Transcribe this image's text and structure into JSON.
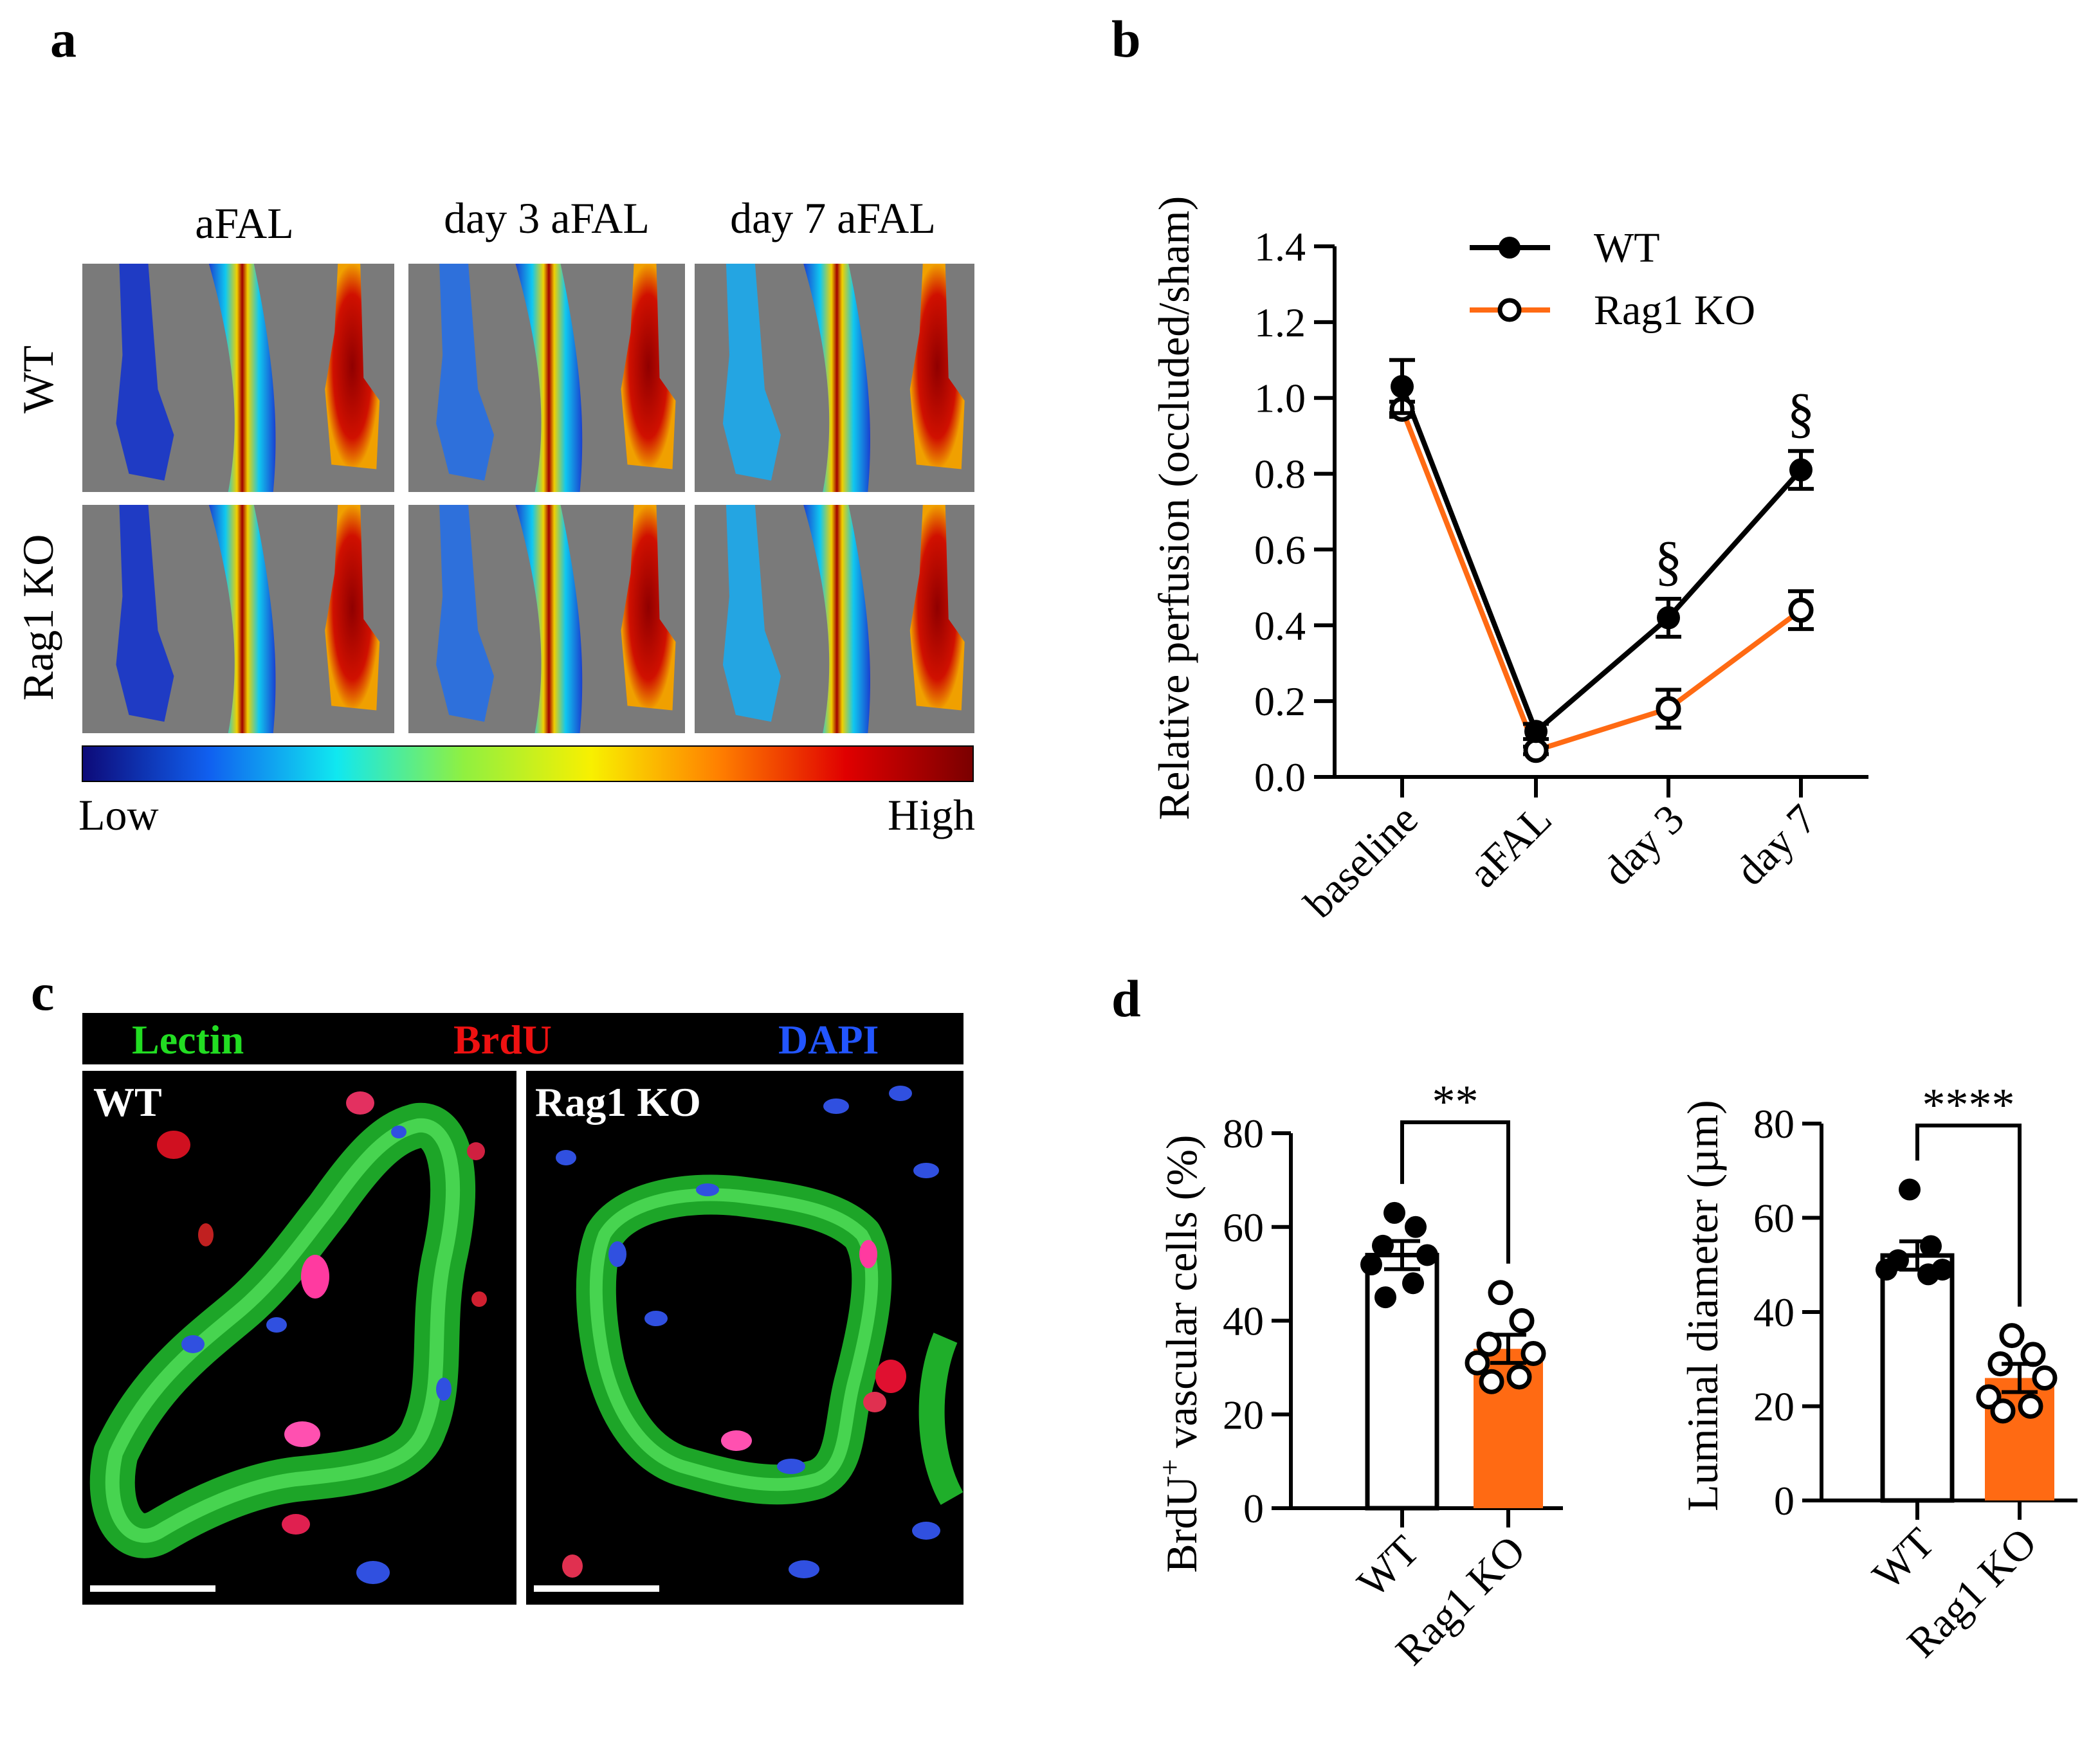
{
  "panels": {
    "a": "a",
    "b": "b",
    "c": "c",
    "d": "d"
  },
  "panel_a": {
    "columns": [
      "aFAL",
      "day 3 aFAL",
      "day 7 aFAL"
    ],
    "rows": [
      "WT",
      "Rag1 KO"
    ],
    "colorbar": {
      "low": "Low",
      "high": "High",
      "colors": [
        "#0d0a78",
        "#1060f0",
        "#10e8f0",
        "#90f040",
        "#f8f000",
        "#ff8000",
        "#e00000",
        "#7a0000"
      ]
    }
  },
  "panel_c": {
    "legend": {
      "lectin": "Lectin",
      "brdu": "BrdU",
      "dapi": "DAPI"
    },
    "legend_colors": {
      "lectin": "#22dd22",
      "brdu": "#ee1111",
      "dapi": "#2255ff"
    },
    "images": [
      "WT",
      "Rag1 KO"
    ]
  },
  "chart_data": [
    {
      "type": "line",
      "ylabel": "Relative perfusion (occluded/sham)",
      "categories": [
        "baseline",
        "aFAL",
        "day 3",
        "day 7"
      ],
      "yticks": [
        "0.0",
        "0.2",
        "0.4",
        "0.6",
        "0.8",
        "1.0",
        "1.2",
        "1.4"
      ],
      "ylim": [
        0,
        1.4
      ],
      "legend_position": "top-right",
      "series": [
        {
          "name": "WT",
          "values": [
            1.03,
            0.12,
            0.42,
            0.81
          ],
          "errors": [
            0.07,
            0.02,
            0.05,
            0.05
          ],
          "color": "#000000",
          "marker": "filled"
        },
        {
          "name": "Rag1 KO",
          "values": [
            0.97,
            0.07,
            0.18,
            0.44
          ],
          "errors": [
            0.02,
            0.01,
            0.05,
            0.05
          ],
          "color": "#ff6a13",
          "marker": "open"
        }
      ],
      "annotations": [
        {
          "category": "day 3",
          "text": "§"
        },
        {
          "category": "day 7",
          "text": "§"
        }
      ]
    },
    {
      "type": "bar",
      "ylabel_main": "BrdU",
      "ylabel_sup": "+",
      "ylabel_rest": " vascular cells (%)",
      "categories": [
        "WT",
        "Rag1 KO"
      ],
      "values": [
        54,
        34
      ],
      "errors": [
        3,
        3
      ],
      "yticks": [
        "0",
        "20",
        "40",
        "60",
        "80"
      ],
      "ylim": [
        0,
        80
      ],
      "colors": [
        "#ffffff",
        "#ff6a13"
      ],
      "points": [
        [
          63,
          60,
          56,
          54,
          52,
          48,
          45
        ],
        [
          46,
          40,
          35,
          33,
          31,
          28,
          27
        ]
      ],
      "significance": "**"
    },
    {
      "type": "bar",
      "ylabel": "Luminal diameter (µm)",
      "categories": [
        "WT",
        "Rag1 KO"
      ],
      "values": [
        52,
        26
      ],
      "errors": [
        3,
        3
      ],
      "yticks": [
        "0",
        "20",
        "40",
        "60",
        "80"
      ],
      "ylim": [
        0,
        80
      ],
      "colors": [
        "#ffffff",
        "#ff6a13"
      ],
      "points": [
        [
          66,
          54,
          51,
          49,
          49,
          48
        ],
        [
          35,
          31,
          29,
          26,
          22,
          20,
          19
        ]
      ],
      "significance": "****"
    }
  ]
}
